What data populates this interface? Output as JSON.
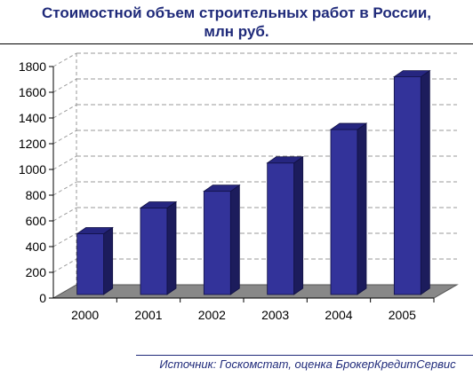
{
  "chart_data": {
    "type": "bar",
    "title_line1": "Стоимостной объем строительных работ в России,",
    "title_line2": "млн руб.",
    "categories": [
      "2000",
      "2001",
      "2002",
      "2003",
      "2004",
      "2005"
    ],
    "series": [
      {
        "values": [
          500,
          700,
          830,
          1050,
          1310,
          1720
        ]
      }
    ],
    "ylim": [
      0,
      1800
    ],
    "yticks": [
      0,
      200,
      400,
      600,
      800,
      1000,
      1200,
      1400,
      1600,
      1800
    ],
    "grid": true,
    "style": "3d",
    "colors": {
      "bar_front": "#33339a",
      "bar_side": "#1c1c5c",
      "bar_top": "#262680",
      "floor": "#888888",
      "grid": "#999999",
      "title": "#1f2a7a"
    }
  },
  "source_text": "Источник: Госкомстат, оценка БрокерКредитСервис"
}
